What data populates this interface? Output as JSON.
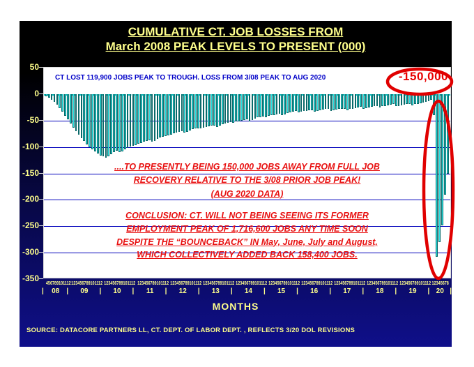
{
  "slide": {
    "title_line1": "CUMULATIVE CT. JOB LOSSES FROM",
    "title_line2": "March 2008 PEAK LEVELS TO PRESENT (000)",
    "months_label": "MONTHS",
    "source": "SOURCE: DATACORE PARTNERS LL, CT. DEPT. OF LABOR DEPT. , REFLECTS 3/20 DOL REVISIONS"
  },
  "annotations": {
    "top_note": "CT LOST 119,900 JOBS PEAK TO TROUGH. LOSS FROM 3/08 PEAK TO AUG 2020",
    "highlight_value": "-150,000",
    "mid_note_lines": [
      "....TO PRESENTLY BEING 150,000 JOBS AWAY FROM FULL JOB",
      "RECOVERY RELATIVE TO THE 3/08 PRIOR JOB PEAK!",
      "(AUG 2020 DATA)"
    ],
    "conclusion_lines": [
      "CONCLUSION: CT. WILL NOT BEING SEEING ITS FORMER",
      "EMPLOYMENT PEAK OF 1,716,600 JOBS ANY TIME SOON",
      "DESPITE THE “BOUNCEBACK” IN May, June, July and August,",
      "WHICH COLLECTIVELY ADDED BACK 158,400 JOBS."
    ]
  },
  "colors": {
    "bar_fill": "#2ae4e4",
    "bar_border": "#0a6a6a",
    "grid_blue": "#0000bb",
    "zero_line_teal": "#00c2c2",
    "accent_red": "#e80000",
    "text_yellow": "#ffff8c",
    "note_blue": "#0000c8"
  },
  "chart_data": {
    "type": "bar",
    "title": "CUMULATIVE CT. JOB LOSSES FROM March 2008 PEAK LEVELS TO PRESENT (000)",
    "xlabel": "MONTHS",
    "ylabel": "",
    "ylim": [
      -350,
      50
    ],
    "yticks": [
      50,
      0,
      -50,
      -100,
      -150,
      -200,
      -250,
      -300,
      -350
    ],
    "grid": true,
    "legend": "none",
    "unit": "thousands of jobs relative to March 2008 peak",
    "peak_to_trough_loss": -119.9,
    "aug_2020_value": -150.0,
    "years": [
      {
        "label": "08",
        "month_digits": "456789101112",
        "values": [
          -4,
          -7,
          -11,
          -15,
          -20,
          -26,
          -33,
          -41,
          -48
        ]
      },
      {
        "label": "09",
        "month_digits": "123456789101112",
        "values": [
          -56,
          -63,
          -70,
          -77,
          -83,
          -89,
          -95,
          -100,
          -104,
          -108,
          -112,
          -116
        ]
      },
      {
        "label": "10",
        "month_digits": "123456789101112",
        "values": [
          -118,
          -120,
          -118,
          -113,
          -109,
          -107,
          -110,
          -108,
          -104,
          -101,
          -99,
          -97
        ]
      },
      {
        "label": "11",
        "month_digits": "123456789101112",
        "values": [
          -96,
          -94,
          -92,
          -90,
          -88,
          -87,
          -90,
          -88,
          -85,
          -82,
          -80,
          -79
        ]
      },
      {
        "label": "12",
        "month_digits": "123456789101112",
        "values": [
          -78,
          -76,
          -74,
          -72,
          -71,
          -70,
          -73,
          -71,
          -68,
          -66,
          -65,
          -64
        ]
      },
      {
        "label": "13",
        "month_digits": "123456789101112",
        "values": [
          -65,
          -63,
          -62,
          -61,
          -60,
          -59,
          -62,
          -60,
          -57,
          -55,
          -54,
          -53
        ]
      },
      {
        "label": "14",
        "month_digits": "123456789101112",
        "values": [
          -54,
          -52,
          -51,
          -50,
          -49,
          -48,
          -51,
          -49,
          -46,
          -44,
          -43,
          -42
        ]
      },
      {
        "label": "15",
        "month_digits": "123456789101112",
        "values": [
          -43,
          -41,
          -40,
          -39,
          -38,
          -37,
          -40,
          -38,
          -36,
          -34,
          -33,
          -32
        ]
      },
      {
        "label": "16",
        "month_digits": "123456789101112",
        "values": [
          -34,
          -33,
          -32,
          -31,
          -30,
          -30,
          -33,
          -31,
          -30,
          -29,
          -28,
          -28
        ]
      },
      {
        "label": "17",
        "month_digits": "123456789101112",
        "values": [
          -31,
          -30,
          -29,
          -28,
          -27,
          -27,
          -30,
          -28,
          -27,
          -26,
          -25,
          -24
        ]
      },
      {
        "label": "18",
        "month_digits": "123456789101112",
        "values": [
          -27,
          -26,
          -25,
          -24,
          -23,
          -22,
          -25,
          -23,
          -22,
          -21,
          -20,
          -19
        ]
      },
      {
        "label": "19",
        "month_digits": "123456789101112",
        "values": [
          -23,
          -22,
          -21,
          -20,
          -19,
          -18,
          -21,
          -19,
          -18,
          -17,
          -16,
          -15
        ]
      },
      {
        "label": "20",
        "month_digits": "12345678",
        "values": [
          -13,
          -11,
          -40,
          -308,
          -280,
          -248,
          -190,
          -150
        ]
      }
    ]
  }
}
